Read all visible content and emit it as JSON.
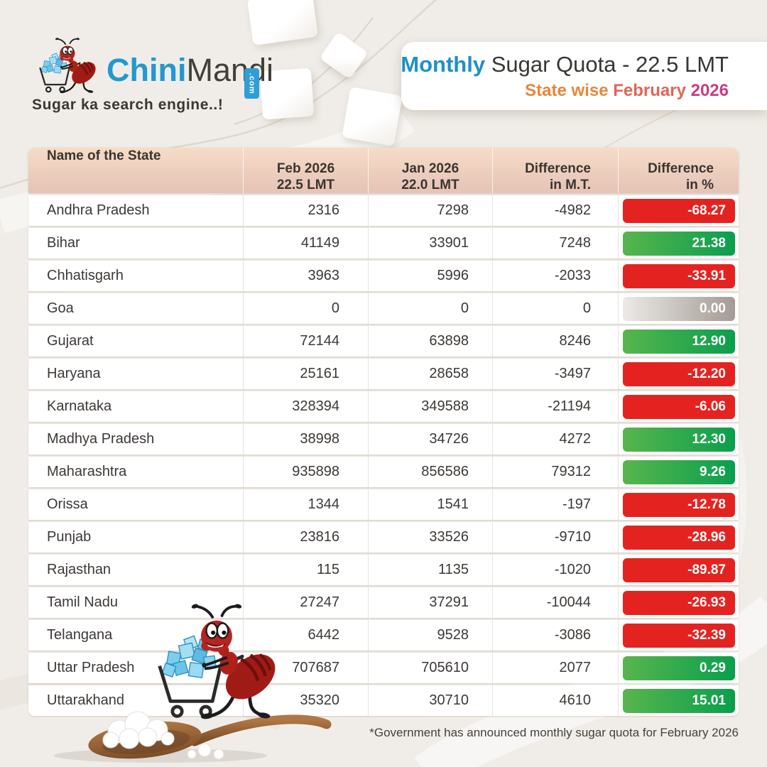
{
  "brand": {
    "logo_icon": "ant-pushing-sugar-cart",
    "name_blue": "Chini",
    "name_dark": "Mandi",
    "domain_badge": ".com",
    "tagline": "Sugar ka search engine..!"
  },
  "header": {
    "title_highlight": "Monthly",
    "title_rest": " Sugar Quota - 22.5 LMT",
    "subtitle_part1": "State wise ",
    "subtitle_part2": "February ",
    "subtitle_part3": "2026"
  },
  "footer": {
    "note": "*Government has announced monthly sugar quota for February 2026"
  },
  "colors": {
    "accent_blue": "#1e90c8",
    "logo_blue": "#2398cf",
    "dotcom_badge_blue": "#2e9fd4",
    "subtitle_orange": "#e8863c",
    "subtitle_salmon": "#e06556",
    "subtitle_magenta": "#ce3a82",
    "header_grad_top": "#f6dcc6",
    "header_grad_bottom": "#e5c3b6",
    "badge_red": "#e42320",
    "badge_green_light": "#58b54d",
    "badge_green_dark": "#0a9f4d",
    "badge_gray_light": "#eceae7",
    "badge_gray_dark": "#a39b94"
  },
  "chart_data": {
    "type": "table",
    "title": "Monthly Sugar Quota - 22.5 LMT",
    "subtitle": "State wise February 2026",
    "columns": [
      {
        "line1": "Name of the State",
        "line2": ""
      },
      {
        "line1": "Feb 2026",
        "line2": "22.5 LMT"
      },
      {
        "line1": "Jan 2026",
        "line2": "22.0 LMT"
      },
      {
        "line1": "Difference",
        "line2": "in M.T."
      },
      {
        "line1": "Difference",
        "line2": "in %"
      }
    ],
    "rows": [
      {
        "state": "Andhra Pradesh",
        "feb_2026": "2316",
        "jan_2026": "7298",
        "diff_mt": "-4982",
        "diff_pct": "-68.27",
        "trend": "negative"
      },
      {
        "state": "Bihar",
        "feb_2026": "41149",
        "jan_2026": "33901",
        "diff_mt": "7248",
        "diff_pct": "21.38",
        "trend": "positive"
      },
      {
        "state": "Chhatisgarh",
        "feb_2026": "3963",
        "jan_2026": "5996",
        "diff_mt": "-2033",
        "diff_pct": "-33.91",
        "trend": "negative"
      },
      {
        "state": "Goa",
        "feb_2026": "0",
        "jan_2026": "0",
        "diff_mt": "0",
        "diff_pct": "0.00",
        "trend": "zero"
      },
      {
        "state": "Gujarat",
        "feb_2026": "72144",
        "jan_2026": "63898",
        "diff_mt": "8246",
        "diff_pct": "12.90",
        "trend": "positive"
      },
      {
        "state": "Haryana",
        "feb_2026": "25161",
        "jan_2026": "28658",
        "diff_mt": "-3497",
        "diff_pct": "-12.20",
        "trend": "negative"
      },
      {
        "state": "Karnataka",
        "feb_2026": "328394",
        "jan_2026": "349588",
        "diff_mt": "-21194",
        "diff_pct": "-6.06",
        "trend": "negative"
      },
      {
        "state": "Madhya Pradesh",
        "feb_2026": "38998",
        "jan_2026": "34726",
        "diff_mt": "4272",
        "diff_pct": "12.30",
        "trend": "positive"
      },
      {
        "state": "Maharashtra",
        "feb_2026": "935898",
        "jan_2026": "856586",
        "diff_mt": "79312",
        "diff_pct": "9.26",
        "trend": "positive"
      },
      {
        "state": "Orissa",
        "feb_2026": "1344",
        "jan_2026": "1541",
        "diff_mt": "-197",
        "diff_pct": "-12.78",
        "trend": "negative"
      },
      {
        "state": "Punjab",
        "feb_2026": "23816",
        "jan_2026": "33526",
        "diff_mt": "-9710",
        "diff_pct": "-28.96",
        "trend": "negative"
      },
      {
        "state": "Rajasthan",
        "feb_2026": "115",
        "jan_2026": "1135",
        "diff_mt": "-1020",
        "diff_pct": "-89.87",
        "trend": "negative"
      },
      {
        "state": "Tamil Nadu",
        "feb_2026": "27247",
        "jan_2026": "37291",
        "diff_mt": "-10044",
        "diff_pct": "-26.93",
        "trend": "negative"
      },
      {
        "state": "Telangana",
        "feb_2026": "6442",
        "jan_2026": "9528",
        "diff_mt": "-3086",
        "diff_pct": "-32.39",
        "trend": "negative"
      },
      {
        "state": "Uttar Pradesh",
        "feb_2026": "707687",
        "jan_2026": "705610",
        "diff_mt": "2077",
        "diff_pct": "0.29",
        "trend": "positive"
      },
      {
        "state": "Uttarakhand",
        "feb_2026": "35320",
        "jan_2026": "30710",
        "diff_mt": "4610",
        "diff_pct": "15.01",
        "trend": "positive"
      }
    ]
  }
}
